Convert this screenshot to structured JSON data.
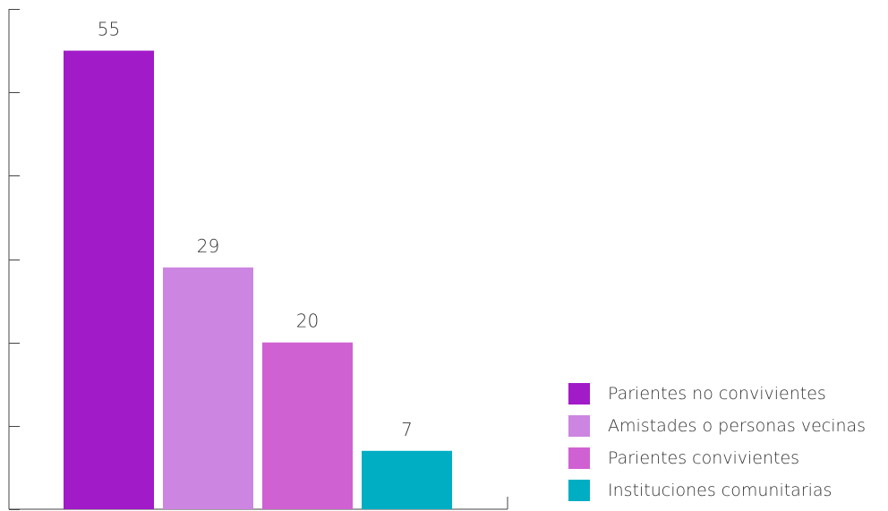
{
  "chart_data": {
    "type": "bar",
    "categories": [
      "Parientes no convivientes",
      "Amistades o personas vecinas",
      "Parientes convivientes",
      "Instituciones comunitarias"
    ],
    "values": [
      55,
      29,
      20,
      7
    ],
    "value_labels": [
      "55",
      "29",
      "20",
      "7"
    ],
    "colors": [
      "#a21bc8",
      "#cd85e2",
      "#d061d2",
      "#00aec4"
    ],
    "ylim": [
      0,
      60
    ],
    "y_tick_count": 6,
    "tick_labels_shown": false,
    "grid": false,
    "legend_position": "bottom-right",
    "title": "",
    "xlabel": "",
    "ylabel": ""
  }
}
